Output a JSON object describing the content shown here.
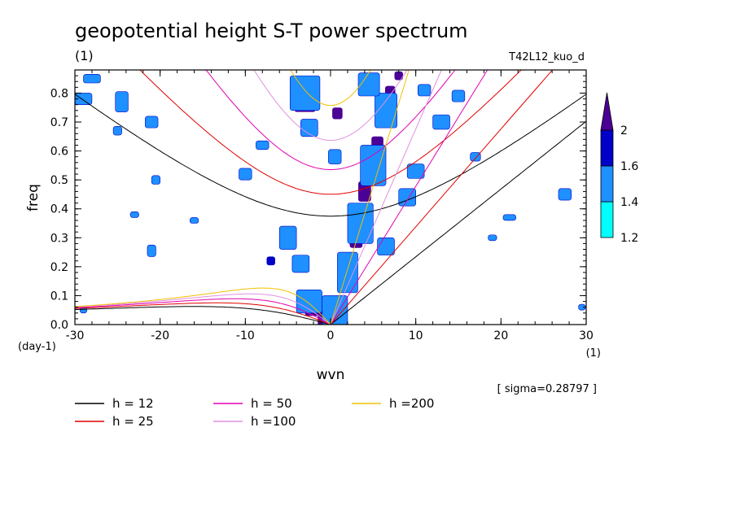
{
  "chart_data": {
    "type": "heatmap",
    "title": "geopotential height S-T power spectrum",
    "subtitle": "(1)",
    "run_label": "T42L12_kuo_d",
    "xlabel": "wvn",
    "ylabel": "freq",
    "x_unit": "(1)",
    "y_unit": "(day-1)",
    "xlim": [
      -30,
      30
    ],
    "ylim": [
      0,
      0.88
    ],
    "x_ticks": [
      -30,
      -20,
      -10,
      0,
      10,
      20,
      30
    ],
    "x_tick_labels": [
      "-30",
      "-20",
      "-10",
      "0",
      "10",
      "20",
      "30"
    ],
    "y_ticks": [
      0.0,
      0.1,
      0.2,
      0.3,
      0.4,
      0.5,
      0.6,
      0.7,
      0.8
    ],
    "y_tick_labels": [
      "0.0",
      "0.1",
      "0.2",
      "0.3",
      "0.4",
      "0.5",
      "0.6",
      "0.7",
      "0.8"
    ],
    "sigma_label": "[ sigma=0.28797 ]",
    "colorbar": {
      "levels": [
        1.2,
        1.4,
        1.6,
        2
      ],
      "level_labels": [
        "1.2",
        "1.4",
        "1.6",
        "2"
      ],
      "colors": [
        "#00ffff",
        "#1e90ff",
        "#0000c8",
        "#4b0096"
      ]
    },
    "series": [
      {
        "name": "h = 12",
        "h": 12,
        "color": "#000000"
      },
      {
        "name": "h = 25",
        "h": 25,
        "color": "#e00000"
      },
      {
        "name": "h = 50",
        "h": 50,
        "color": "#e000b0"
      },
      {
        "name": "h =100",
        "h": 100,
        "color": "#e090e0"
      },
      {
        "name": "h =200",
        "h": 200,
        "color": "#f0c000"
      }
    ],
    "cells": [
      {
        "x": 0,
        "y": 0.02,
        "w": 3,
        "h": 0.05,
        "level": 3
      },
      {
        "x": -2,
        "y": 0.05,
        "w": 2,
        "h": 0.04,
        "level": 3
      },
      {
        "x": 1,
        "y": 0.08,
        "w": 1.5,
        "h": 0.04,
        "level": 3
      },
      {
        "x": 2,
        "y": 0.15,
        "w": 1.2,
        "h": 0.05,
        "level": 3
      },
      {
        "x": 2.5,
        "y": 0.22,
        "w": 1.2,
        "h": 0.06,
        "level": 3
      },
      {
        "x": 3,
        "y": 0.3,
        "w": 1.5,
        "h": 0.07,
        "level": 3
      },
      {
        "x": 3.3,
        "y": 0.38,
        "w": 2,
        "h": 0.06,
        "level": 3
      },
      {
        "x": 4,
        "y": 0.46,
        "w": 1.5,
        "h": 0.07,
        "level": 3
      },
      {
        "x": 5,
        "y": 0.55,
        "w": 1.5,
        "h": 0.06,
        "level": 3
      },
      {
        "x": 5.5,
        "y": 0.62,
        "w": 1.4,
        "h": 0.06,
        "level": 3
      },
      {
        "x": 6,
        "y": 0.71,
        "w": 1.2,
        "h": 0.05,
        "level": 3
      },
      {
        "x": 7,
        "y": 0.8,
        "w": 1.2,
        "h": 0.05,
        "level": 3
      },
      {
        "x": 8,
        "y": 0.86,
        "w": 1,
        "h": 0.03,
        "level": 3
      },
      {
        "x": 5,
        "y": 0.85,
        "w": 1.5,
        "h": 0.04,
        "level": 3
      },
      {
        "x": 0.8,
        "y": 0.73,
        "w": 1.2,
        "h": 0.04,
        "level": 3
      },
      {
        "x": -3,
        "y": 0.77,
        "w": 2.5,
        "h": 0.07,
        "level": 3
      },
      {
        "x": -3.5,
        "y": 0.2,
        "w": 1.2,
        "h": 0.03,
        "level": 3
      },
      {
        "x": -7,
        "y": 0.22,
        "w": 1,
        "h": 0.03,
        "level": 2
      },
      {
        "x": 0.5,
        "y": 0.05,
        "w": 3,
        "h": 0.1,
        "level": 1
      },
      {
        "x": -2.5,
        "y": 0.08,
        "w": 3,
        "h": 0.08,
        "level": 1
      },
      {
        "x": 2,
        "y": 0.18,
        "w": 2.4,
        "h": 0.14,
        "level": 1
      },
      {
        "x": 3.5,
        "y": 0.35,
        "w": 3,
        "h": 0.14,
        "level": 1
      },
      {
        "x": 5,
        "y": 0.55,
        "w": 3,
        "h": 0.14,
        "level": 1
      },
      {
        "x": 6.5,
        "y": 0.74,
        "w": 2.6,
        "h": 0.12,
        "level": 1
      },
      {
        "x": 4.5,
        "y": 0.83,
        "w": 2.5,
        "h": 0.08,
        "level": 1
      },
      {
        "x": -3,
        "y": 0.8,
        "w": 3.5,
        "h": 0.12,
        "level": 1
      },
      {
        "x": -2.5,
        "y": 0.68,
        "w": 2,
        "h": 0.06,
        "level": 1
      },
      {
        "x": 0.5,
        "y": 0.58,
        "w": 1.5,
        "h": 0.05,
        "level": 1
      },
      {
        "x": -5,
        "y": 0.3,
        "w": 2,
        "h": 0.08,
        "level": 1
      },
      {
        "x": -3.5,
        "y": 0.21,
        "w": 2,
        "h": 0.06,
        "level": 1
      },
      {
        "x": 6.5,
        "y": 0.27,
        "w": 2,
        "h": 0.06,
        "level": 1
      },
      {
        "x": 9,
        "y": 0.44,
        "w": 2,
        "h": 0.06,
        "level": 1
      },
      {
        "x": 10,
        "y": 0.53,
        "w": 2,
        "h": 0.05,
        "level": 1
      },
      {
        "x": 13,
        "y": 0.7,
        "w": 2,
        "h": 0.05,
        "level": 1
      },
      {
        "x": 15,
        "y": 0.79,
        "w": 1.5,
        "h": 0.04,
        "level": 1
      },
      {
        "x": 11,
        "y": 0.81,
        "w": 1.5,
        "h": 0.04,
        "level": 1
      },
      {
        "x": -10,
        "y": 0.52,
        "w": 1.5,
        "h": 0.04,
        "level": 1
      },
      {
        "x": -8,
        "y": 0.62,
        "w": 1.5,
        "h": 0.03,
        "level": 1
      },
      {
        "x": -29,
        "y": 0.78,
        "w": 2,
        "h": 0.04,
        "level": 1
      },
      {
        "x": -24.5,
        "y": 0.77,
        "w": 1.5,
        "h": 0.07,
        "level": 1
      },
      {
        "x": -21,
        "y": 0.7,
        "w": 1.5,
        "h": 0.04,
        "level": 1
      },
      {
        "x": -25,
        "y": 0.67,
        "w": 1,
        "h": 0.03,
        "level": 1
      },
      {
        "x": -28,
        "y": 0.85,
        "w": 2,
        "h": 0.03,
        "level": 1
      },
      {
        "x": -21,
        "y": 0.255,
        "w": 1,
        "h": 0.04,
        "level": 1
      },
      {
        "x": -20.5,
        "y": 0.5,
        "w": 1,
        "h": 0.03,
        "level": 1
      },
      {
        "x": -23,
        "y": 0.38,
        "w": 1,
        "h": 0.02,
        "level": 1
      },
      {
        "x": 27.5,
        "y": 0.45,
        "w": 1.5,
        "h": 0.04,
        "level": 1
      },
      {
        "x": 21,
        "y": 0.37,
        "w": 1.5,
        "h": 0.02,
        "level": 1
      },
      {
        "x": 17,
        "y": 0.58,
        "w": 1.2,
        "h": 0.03,
        "level": 1
      },
      {
        "x": 19,
        "y": 0.3,
        "w": 1,
        "h": 0.02,
        "level": 1
      },
      {
        "x": 29.5,
        "y": 0.06,
        "w": 0.8,
        "h": 0.02,
        "level": 1
      },
      {
        "x": -29,
        "y": 0.05,
        "w": 0.8,
        "h": 0.02,
        "level": 1
      },
      {
        "x": -16,
        "y": 0.36,
        "w": 1,
        "h": 0.02,
        "level": 1
      }
    ]
  }
}
